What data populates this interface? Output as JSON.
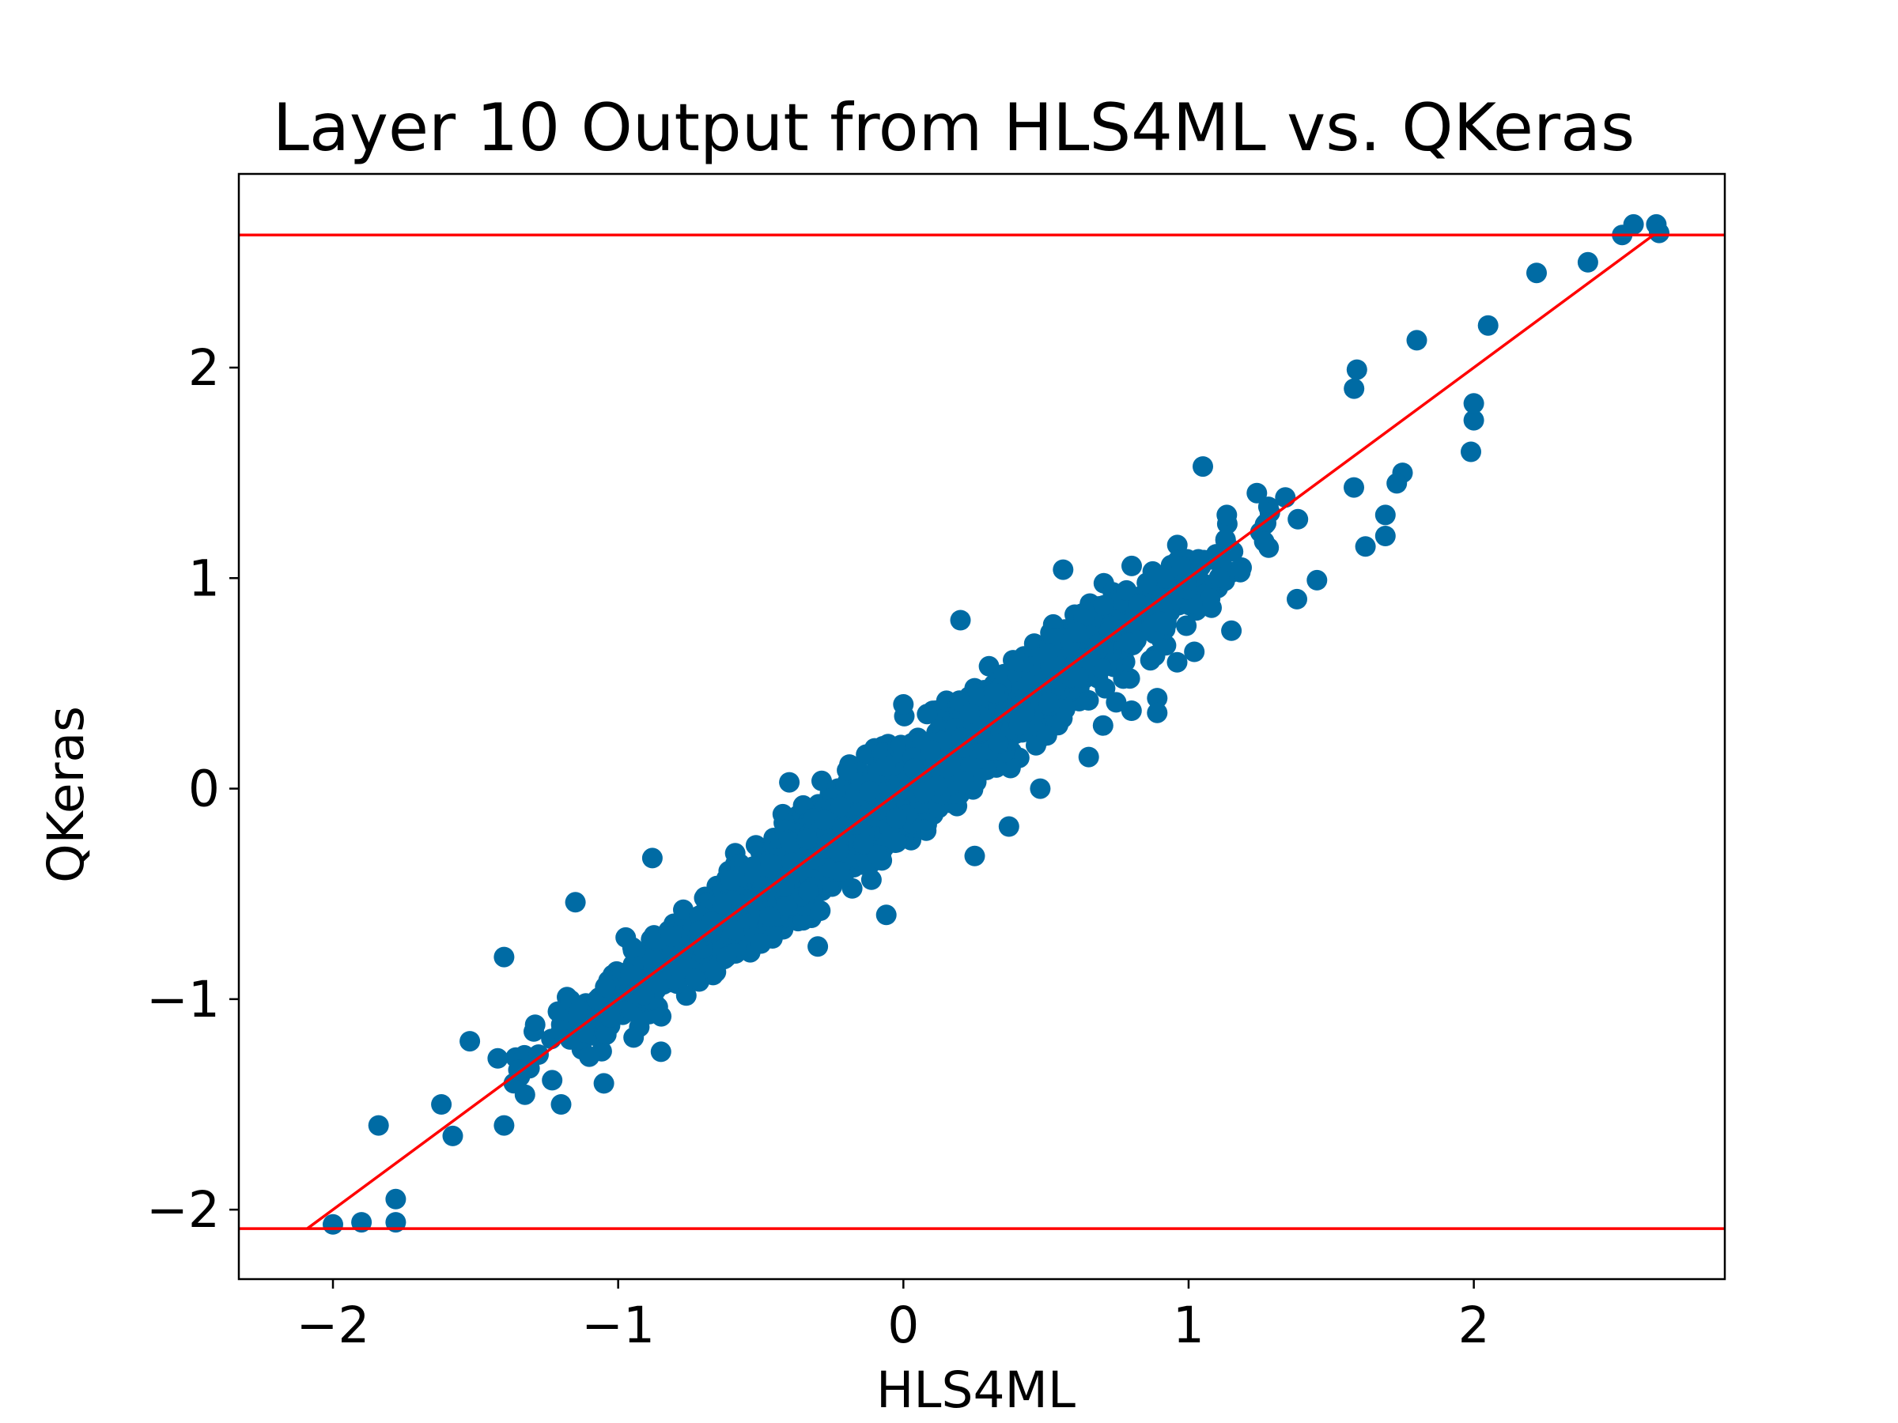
{
  "chart_data": {
    "type": "scatter",
    "title": "Layer 10 Output from HLS4ML vs. QKeras",
    "xlabel": "HLS4ML",
    "ylabel": "QKeras",
    "xlim": [
      -2.33,
      2.88
    ],
    "ylim": [
      -2.33,
      2.92
    ],
    "x_ticks": [
      -2,
      -1,
      0,
      1,
      2
    ],
    "y_ticks": [
      -2,
      -1,
      0,
      1,
      2
    ],
    "x_tick_labels": [
      "−2",
      "−1",
      "0",
      "1",
      "2"
    ],
    "y_tick_labels": [
      "−2",
      "−1",
      "0",
      "1",
      "2"
    ],
    "grid": false,
    "legend": "none",
    "scatter_color": "#006BA4",
    "line_color": "#FF0000",
    "reference_lines": {
      "diagonal": {
        "from": [
          -2.09,
          -2.09
        ],
        "to": [
          2.63,
          2.63
        ]
      },
      "horizontal": [
        2.63,
        -2.09
      ]
    },
    "point_cloud": {
      "relation": "y approximately equals x",
      "x_range": [
        -2.02,
        2.65
      ],
      "spread_y": 0.18
    },
    "sample_points": [
      [
        -2.0,
        -2.07
      ],
      [
        -1.9,
        -2.06
      ],
      [
        -1.78,
        -2.06
      ],
      [
        -1.78,
        -1.95
      ],
      [
        -1.84,
        -1.6
      ],
      [
        2.52,
        2.63
      ],
      [
        2.56,
        2.68
      ],
      [
        2.64,
        2.68
      ],
      [
        2.65,
        2.64
      ],
      [
        2.4,
        2.5
      ],
      [
        2.22,
        2.45
      ],
      [
        2.05,
        2.2
      ],
      [
        1.8,
        2.13
      ],
      [
        1.59,
        1.99
      ],
      [
        1.58,
        1.9
      ],
      [
        1.05,
        1.53
      ],
      [
        0.56,
        1.04
      ],
      [
        0.2,
        0.8
      ],
      [
        0.0,
        0.4
      ],
      [
        -0.4,
        0.03
      ],
      [
        -0.88,
        -0.33
      ],
      [
        -1.15,
        -0.54
      ],
      [
        -1.4,
        -0.8
      ],
      [
        -1.52,
        -1.2
      ],
      [
        -1.62,
        -1.5
      ],
      [
        2.0,
        1.75
      ],
      [
        2.0,
        1.83
      ],
      [
        1.99,
        1.6
      ],
      [
        1.75,
        1.5
      ],
      [
        1.73,
        1.45
      ],
      [
        1.69,
        1.3
      ],
      [
        1.69,
        1.2
      ],
      [
        1.62,
        1.15
      ],
      [
        1.45,
        0.99
      ],
      [
        1.38,
        0.9
      ],
      [
        1.15,
        0.75
      ],
      [
        1.02,
        0.65
      ],
      [
        0.96,
        0.6
      ],
      [
        0.89,
        0.43
      ],
      [
        0.89,
        0.36
      ],
      [
        0.8,
        0.37
      ],
      [
        0.7,
        0.3
      ],
      [
        0.65,
        0.15
      ],
      [
        0.48,
        0.0
      ],
      [
        0.37,
        -0.18
      ],
      [
        0.25,
        -0.32
      ],
      [
        0.08,
        -0.2
      ],
      [
        -0.06,
        -0.6
      ],
      [
        -0.3,
        -0.75
      ],
      [
        -0.62,
        -0.8
      ],
      [
        -0.85,
        -1.25
      ],
      [
        -1.05,
        -1.4
      ],
      [
        -1.2,
        -1.5
      ],
      [
        -1.4,
        -1.6
      ],
      [
        -1.58,
        -1.65
      ]
    ]
  }
}
